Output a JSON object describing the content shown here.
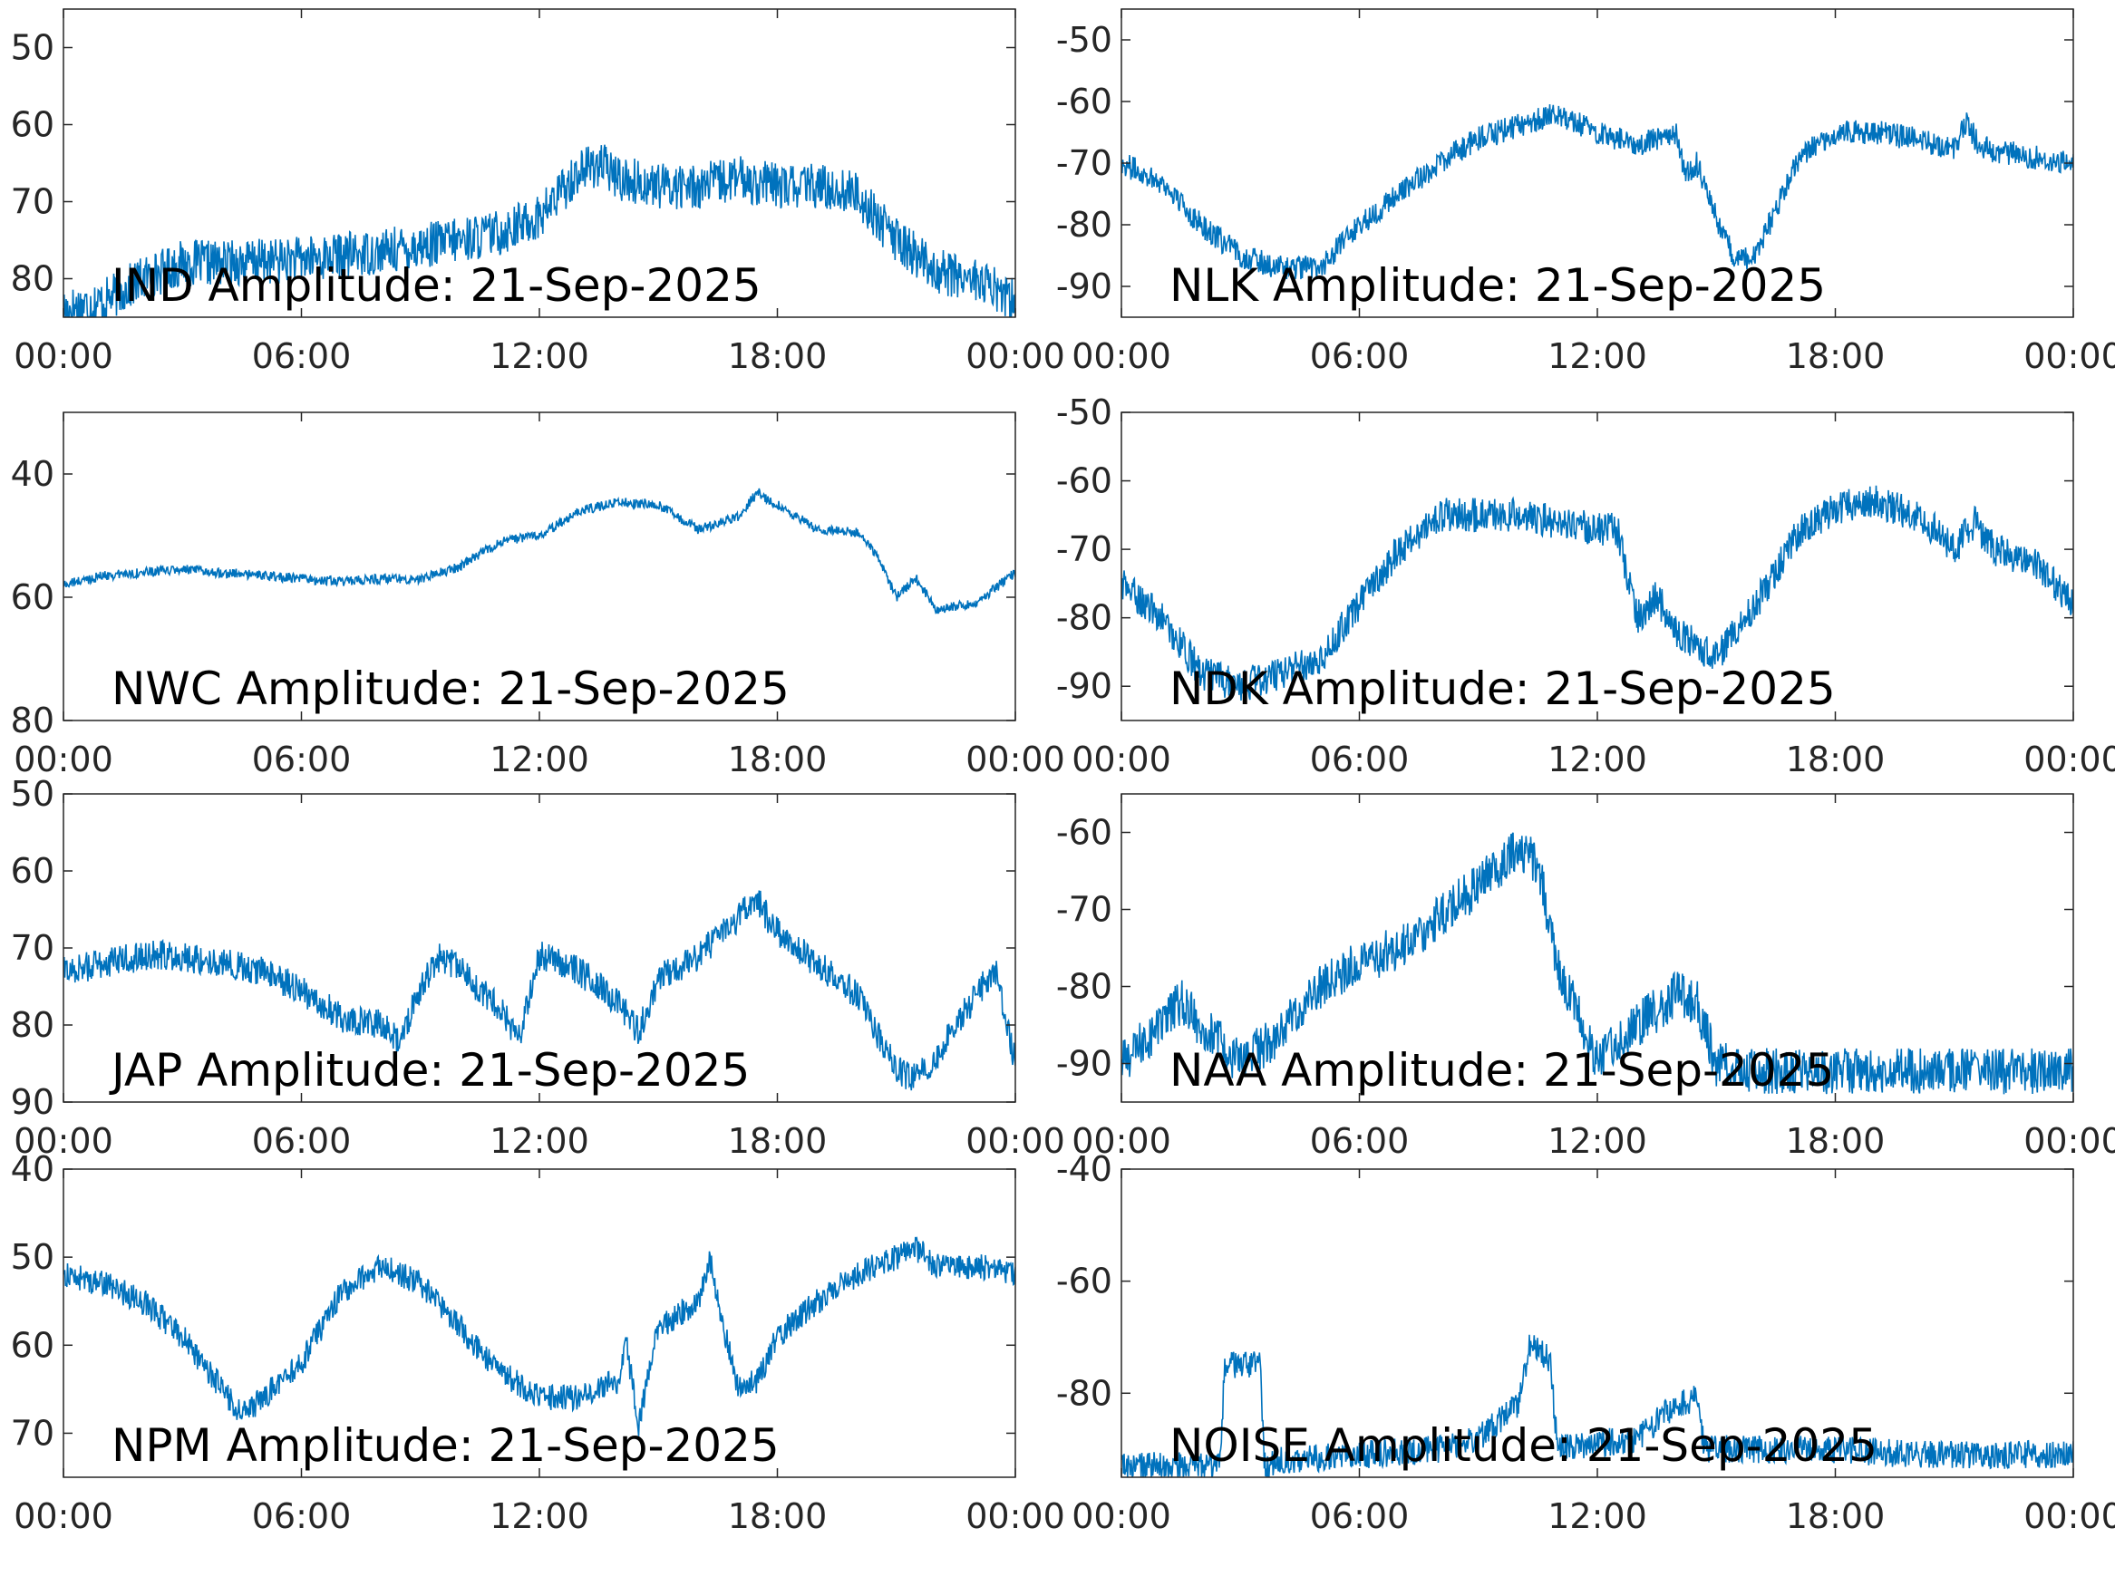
{
  "figure": {
    "background": "#ffffff",
    "line_color": "#0072BD",
    "axis_color": "#262626"
  },
  "chart_data": [
    {
      "type": "line",
      "title": "IND Amplitude: 21-Sep-2025",
      "xlabel": "",
      "ylabel": "",
      "xticks": [
        "00:00",
        "06:00",
        "12:00",
        "18:00",
        "00:00"
      ],
      "xlim": [
        0,
        24
      ],
      "yticks": [
        -50,
        -60,
        -70,
        -80
      ],
      "ytick_labels": [
        "50",
        "60",
        "70",
        "80"
      ],
      "ylim": [
        -85,
        -45
      ],
      "grid": false,
      "series": [
        {
          "x": [
            0,
            1,
            2,
            3,
            4,
            6,
            8,
            10,
            11,
            12,
            13,
            13.5,
            14,
            15,
            16,
            17,
            18,
            19,
            20,
            20.5,
            21,
            22,
            23,
            24
          ],
          "y": [
            -84,
            -83,
            -80,
            -78,
            -78,
            -77.5,
            -76.5,
            -75,
            -74,
            -72,
            -66,
            -65,
            -67,
            -68,
            -68,
            -67,
            -68,
            -68,
            -69,
            -72,
            -75,
            -79,
            -80,
            -83
          ],
          "noise": 3
        }
      ]
    },
    {
      "type": "line",
      "title": "NLK Amplitude: 21-Sep-2025",
      "xlabel": "",
      "ylabel": "",
      "xticks": [
        "00:00",
        "06:00",
        "12:00",
        "18:00",
        "00:00"
      ],
      "xlim": [
        0,
        24
      ],
      "yticks": [
        -50,
        -60,
        -70,
        -80,
        -90
      ],
      "ytick_labels": [
        "-50",
        "-60",
        "-70",
        "-80",
        "-90"
      ],
      "ylim": [
        -95,
        -45
      ],
      "grid": false,
      "series": [
        {
          "x": [
            0,
            1,
            2,
            3,
            4,
            5,
            6,
            7,
            8,
            9,
            10,
            11,
            12,
            13,
            13.5,
            14,
            14.2,
            14.5,
            15,
            15.5,
            16,
            17,
            17.5,
            18,
            19,
            20,
            20.5,
            21,
            21.3,
            21.6,
            22,
            23,
            24
          ],
          "y": [
            -70,
            -73,
            -80,
            -85,
            -87,
            -87,
            -80,
            -75,
            -70,
            -66,
            -64,
            -62,
            -65,
            -67,
            -66,
            -65,
            -72,
            -70,
            -79,
            -86,
            -85,
            -70,
            -67,
            -65,
            -65,
            -66,
            -67,
            -68,
            -63,
            -67,
            -68,
            -69,
            -70
          ],
          "noise": 2
        }
      ]
    },
    {
      "type": "line",
      "title": "NWC Amplitude: 21-Sep-2025",
      "xlabel": "",
      "ylabel": "",
      "xticks": [
        "00:00",
        "06:00",
        "12:00",
        "18:00",
        "00:00"
      ],
      "xlim": [
        0,
        24
      ],
      "yticks": [
        -40,
        -60,
        -80
      ],
      "ytick_labels": [
        "40",
        "60",
        "80"
      ],
      "ylim": [
        -80,
        -30
      ],
      "grid": false,
      "series": [
        {
          "x": [
            0,
            1,
            2,
            3,
            4,
            5,
            6,
            7,
            8,
            9,
            10,
            11,
            12,
            13,
            14,
            15,
            16,
            17,
            17.5,
            18,
            19,
            20,
            20.5,
            21,
            21.5,
            22,
            23,
            24
          ],
          "y": [
            -58,
            -56.5,
            -56,
            -55.5,
            -56,
            -56.5,
            -57,
            -57.5,
            -57,
            -57,
            -55,
            -51,
            -50,
            -46,
            -44.5,
            -45,
            -49,
            -47,
            -43,
            -45,
            -49,
            -49.5,
            -53,
            -60,
            -57,
            -62,
            -61,
            -56
          ],
          "noise": 0.8
        }
      ]
    },
    {
      "type": "line",
      "title": "NDK Amplitude: 21-Sep-2025",
      "xlabel": "",
      "ylabel": "",
      "xticks": [
        "00:00",
        "06:00",
        "12:00",
        "18:00",
        "00:00"
      ],
      "xlim": [
        0,
        24
      ],
      "yticks": [
        -50,
        -60,
        -70,
        -80,
        -90
      ],
      "ytick_labels": [
        "-50",
        "-60",
        "-70",
        "-80",
        "-90"
      ],
      "ylim": [
        -95,
        -50
      ],
      "grid": false,
      "series": [
        {
          "x": [
            0,
            1,
            2,
            3,
            4,
            5,
            6,
            7,
            8,
            10,
            12,
            12.5,
            13,
            13.5,
            14,
            15,
            16,
            17,
            18,
            19,
            20,
            20.5,
            21,
            21.5,
            22,
            23,
            24
          ],
          "y": [
            -75,
            -80,
            -88,
            -90,
            -88,
            -86,
            -78,
            -70,
            -65,
            -65,
            -67,
            -67,
            -80,
            -77,
            -82,
            -86,
            -78,
            -68,
            -64,
            -63,
            -65,
            -67,
            -70,
            -66,
            -70,
            -72,
            -78
          ],
          "noise": 2.5
        }
      ]
    },
    {
      "type": "line",
      "title": "JAP Amplitude: 21-Sep-2025",
      "xlabel": "",
      "ylabel": "",
      "xticks": [
        "00:00",
        "06:00",
        "12:00",
        "18:00",
        "00:00"
      ],
      "xlim": [
        0,
        24
      ],
      "yticks": [
        -50,
        -60,
        -70,
        -80,
        -90
      ],
      "ytick_labels": [
        "50",
        "60",
        "70",
        "80",
        "90"
      ],
      "ylim": [
        -90,
        -50
      ],
      "grid": false,
      "series": [
        {
          "x": [
            0,
            1,
            2,
            3,
            4,
            5,
            6,
            7,
            8,
            8.5,
            9,
            9.5,
            10,
            11,
            11.5,
            12,
            13,
            14,
            14.5,
            15,
            16,
            17,
            17.5,
            18,
            19,
            20,
            21,
            21.5,
            22,
            23,
            23.5,
            24
          ],
          "y": [
            -73,
            -72,
            -71,
            -71,
            -72,
            -73,
            -75.5,
            -79,
            -80,
            -82,
            -75,
            -71,
            -73,
            -78,
            -82,
            -71,
            -73,
            -77,
            -81,
            -74,
            -71,
            -66,
            -64,
            -68,
            -72,
            -76,
            -86,
            -87,
            -84,
            -76,
            -73,
            -85
          ],
          "noise": 2
        }
      ]
    },
    {
      "type": "line",
      "title": "NAA Amplitude: 21-Sep-2025",
      "xlabel": "",
      "ylabel": "",
      "xticks": [
        "00:00",
        "06:00",
        "12:00",
        "18:00",
        "00:00"
      ],
      "xlim": [
        0,
        24
      ],
      "yticks": [
        -60,
        -70,
        -80,
        -90
      ],
      "ytick_labels": [
        "-60",
        "-70",
        "-80",
        "-90"
      ],
      "ylim": [
        -95,
        -55
      ],
      "grid": false,
      "series": [
        {
          "x": [
            0,
            1,
            1.5,
            2,
            3,
            4,
            5,
            6,
            7,
            8,
            9,
            10,
            10.5,
            11,
            11.5,
            12,
            13,
            14,
            14.5,
            15,
            16,
            18,
            20,
            22,
            24
          ],
          "y": [
            -90,
            -85,
            -82,
            -85,
            -90,
            -86,
            -80,
            -77,
            -75,
            -71,
            -67,
            -62,
            -64,
            -78,
            -83,
            -90,
            -85,
            -81,
            -82,
            -90,
            -91,
            -91,
            -91,
            -91,
            -91
          ],
          "noise": 3
        }
      ]
    },
    {
      "type": "line",
      "title": "NPM Amplitude: 21-Sep-2025",
      "xlabel": "",
      "ylabel": "",
      "xticks": [
        "00:00",
        "06:00",
        "12:00",
        "18:00",
        "00:00"
      ],
      "xlim": [
        0,
        24
      ],
      "yticks": [
        -40,
        -50,
        -60,
        -70
      ],
      "ytick_labels": [
        "40",
        "50",
        "60",
        "70"
      ],
      "ylim": [
        -75,
        -40
      ],
      "grid": false,
      "series": [
        {
          "x": [
            0,
            1,
            2,
            3,
            4,
            4.5,
            5,
            6,
            7,
            8,
            9,
            10,
            11,
            12,
            13,
            14,
            14.2,
            14.5,
            15,
            16,
            16.3,
            16.6,
            17,
            17.5,
            18,
            19,
            20,
            21,
            21.5,
            22,
            23,
            24
          ],
          "y": [
            -52,
            -53,
            -55,
            -59,
            -65,
            -68,
            -66,
            -62,
            -54,
            -51,
            -53,
            -58,
            -63,
            -66,
            -66,
            -64,
            -60,
            -69,
            -58,
            -55,
            -50,
            -57,
            -65,
            -64,
            -59,
            -55,
            -52,
            -50,
            -49,
            -51,
            -51,
            -52
          ],
          "noise": 1.5
        }
      ]
    },
    {
      "type": "line",
      "title": "NOISE Amplitude: 21-Sep-2025",
      "xlabel": "",
      "ylabel": "",
      "xticks": [
        "00:00",
        "06:00",
        "12:00",
        "18:00",
        "00:00"
      ],
      "xlim": [
        0,
        24
      ],
      "yticks": [
        -40,
        -60,
        -80
      ],
      "ytick_labels": [
        "-40",
        "-60",
        "-80"
      ],
      "ylim": [
        -95,
        -40
      ],
      "grid": false,
      "series": [
        {
          "x": [
            0,
            2,
            2.5,
            2.6,
            3.5,
            3.6,
            4,
            6,
            8,
            9,
            10,
            10.3,
            10.8,
            11,
            12,
            13,
            14,
            14.5,
            14.7,
            15,
            16,
            18,
            20,
            22,
            24
          ],
          "y": [
            -93,
            -93,
            -93,
            -75,
            -75,
            -93,
            -92,
            -91,
            -90,
            -88,
            -82,
            -71,
            -74,
            -90,
            -89,
            -88,
            -82,
            -81,
            -90,
            -90,
            -90,
            -90,
            -91,
            -91,
            -91
          ],
          "noise": 2.5
        }
      ]
    }
  ]
}
